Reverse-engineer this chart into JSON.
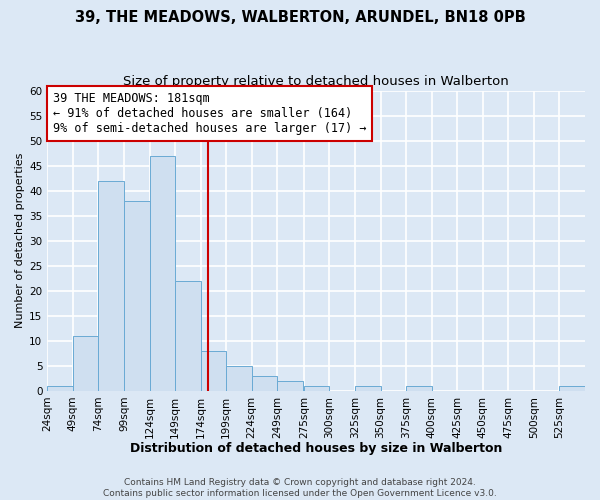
{
  "title": "39, THE MEADOWS, WALBERTON, ARUNDEL, BN18 0PB",
  "subtitle": "Size of property relative to detached houses in Walberton",
  "xlabel": "Distribution of detached houses by size in Walberton",
  "ylabel": "Number of detached properties",
  "bin_edges": [
    24,
    49,
    74,
    99,
    124,
    149,
    174,
    199,
    224,
    249,
    275,
    300,
    325,
    350,
    375,
    400,
    425,
    450,
    475,
    500,
    525,
    550
  ],
  "counts": [
    1,
    11,
    42,
    38,
    47,
    22,
    8,
    5,
    3,
    2,
    1,
    0,
    1,
    0,
    1,
    0,
    0,
    0,
    0,
    0,
    1
  ],
  "bar_facecolor": "#cfdff0",
  "bar_edgecolor": "#6aaad4",
  "reference_line_x": 181,
  "ylim": [
    0,
    60
  ],
  "yticks": [
    0,
    5,
    10,
    15,
    20,
    25,
    30,
    35,
    40,
    45,
    50,
    55,
    60
  ],
  "annotation_title": "39 THE MEADOWS: 181sqm",
  "annotation_line1": "← 91% of detached houses are smaller (164)",
  "annotation_line2": "9% of semi-detached houses are larger (17) →",
  "annotation_box_facecolor": "#ffffff",
  "annotation_box_edgecolor": "#cc0000",
  "footer1": "Contains HM Land Registry data © Crown copyright and database right 2024.",
  "footer2": "Contains public sector information licensed under the Open Government Licence v3.0.",
  "tick_labels": [
    "24sqm",
    "49sqm",
    "74sqm",
    "99sqm",
    "124sqm",
    "149sqm",
    "174sqm",
    "199sqm",
    "224sqm",
    "249sqm",
    "275sqm",
    "300sqm",
    "325sqm",
    "350sqm",
    "375sqm",
    "400sqm",
    "425sqm",
    "450sqm",
    "475sqm",
    "500sqm",
    "525sqm"
  ],
  "background_color": "#dce8f5",
  "plot_bg_color": "#dce8f5",
  "grid_color": "#ffffff",
  "title_fontsize": 10.5,
  "subtitle_fontsize": 9.5,
  "xlabel_fontsize": 9,
  "ylabel_fontsize": 8,
  "tick_fontsize": 7.5,
  "annotation_fontsize": 8.5,
  "footer_fontsize": 6.5
}
